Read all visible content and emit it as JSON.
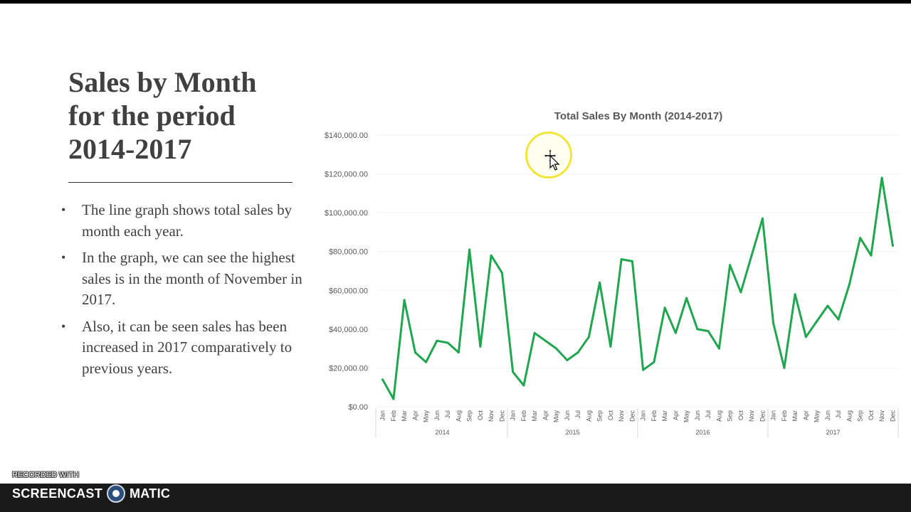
{
  "slide": {
    "title_lines": [
      "Sales by Month",
      "for the period",
      "2014-2017"
    ],
    "bullets": [
      "The line graph shows total sales by month each year.",
      "In the graph, we can see the highest sales is in the month of November in 2017.",
      "Also, it can be seen sales has been increased in 2017 comparatively to previous years."
    ]
  },
  "chart_data": {
    "type": "line",
    "title": "Total Sales By Month (2014-2017)",
    "xlabel": "",
    "ylabel": "",
    "ylim": [
      0,
      140000
    ],
    "y_ticks": [
      "$0.00",
      "$20,000.00",
      "$40,000.00",
      "$60,000.00",
      "$80,000.00",
      "$100,000.00",
      "$120,000.00",
      "$140,000.00"
    ],
    "y_tick_values": [
      0,
      20000,
      40000,
      60000,
      80000,
      100000,
      120000,
      140000
    ],
    "grid": true,
    "legend": "none",
    "line_color": "#1fa64f",
    "years": [
      "2014",
      "2015",
      "2016",
      "2017"
    ],
    "months": [
      "Jan",
      "Feb",
      "Mar",
      "Apr",
      "May",
      "Jun",
      "Jul",
      "Aug",
      "Sep",
      "Oct",
      "Nov",
      "Dec"
    ],
    "series": [
      {
        "values": [
          14000,
          4000,
          55000,
          28000,
          23000,
          34000,
          33000,
          28000,
          81000,
          31000,
          78000,
          69000,
          18000,
          11000,
          38000,
          34000,
          30000,
          24000,
          28000,
          36000,
          64000,
          31000,
          76000,
          75000,
          19000,
          23000,
          51000,
          38000,
          56000,
          40000,
          39000,
          30000,
          73000,
          59000,
          78000,
          97000,
          43000,
          20000,
          58000,
          36000,
          44000,
          52000,
          45000,
          63000,
          87000,
          78000,
          118000,
          83000
        ]
      }
    ]
  },
  "recorder": {
    "recorded_with": "RECORDED WITH",
    "brand_left": "SCREENCAST",
    "brand_right": "MATIC",
    "logo_icon": "screencast-o-matic-logo-icon"
  },
  "cursor": {
    "icon": "move-cursor-icon",
    "highlight_color": "#f2e53a"
  }
}
